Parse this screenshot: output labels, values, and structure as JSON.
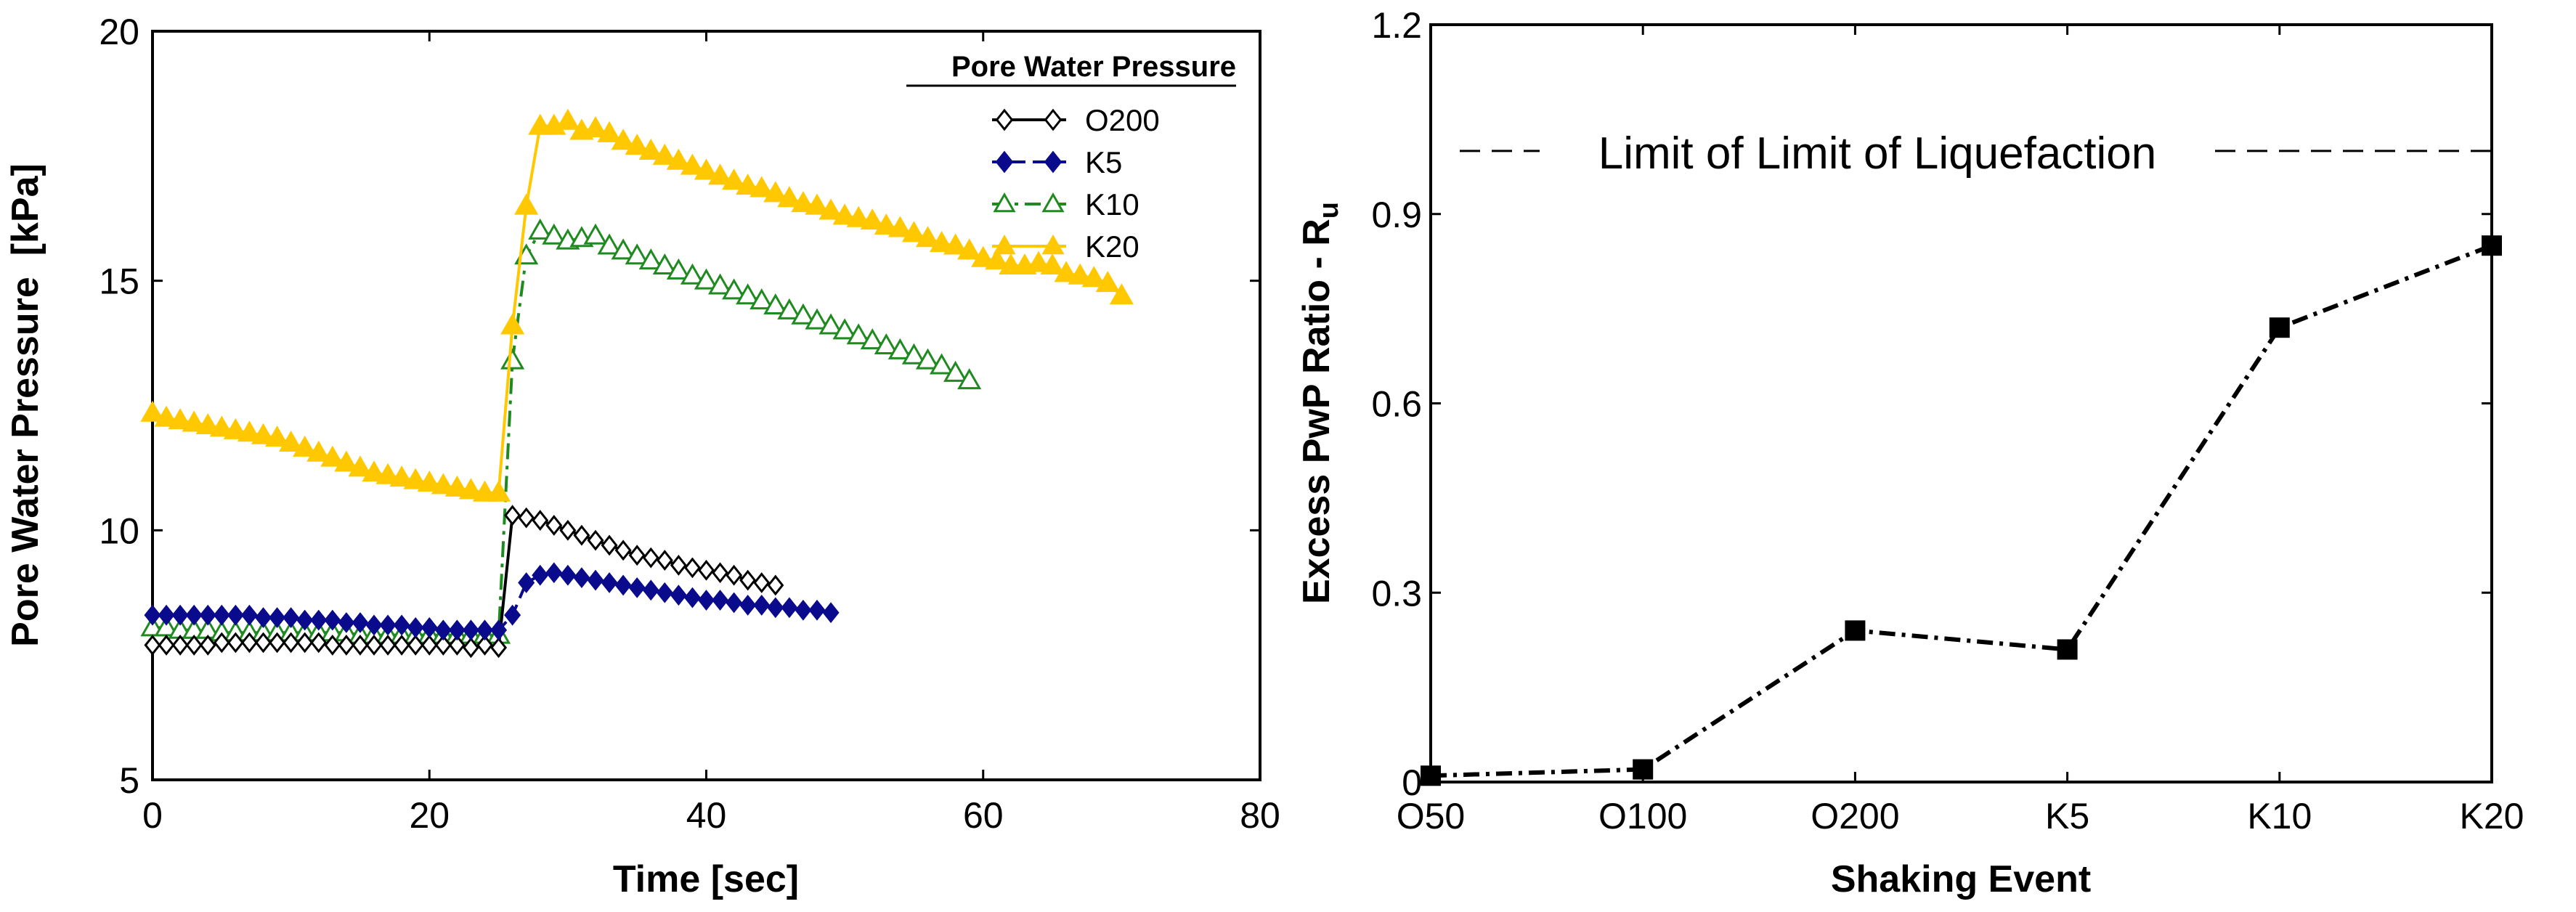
{
  "chart_data": [
    {
      "type": "line",
      "title": "",
      "xlabel": "Time [sec]",
      "ylabel": "Pore Water Pressure  [kPa]",
      "xlim": [
        0,
        80
      ],
      "ylim": [
        5,
        20
      ],
      "xticks": [
        "0",
        "20",
        "40",
        "60",
        "80"
      ],
      "yticks": [
        "5",
        "10",
        "15",
        "20"
      ],
      "legend_title": "Pore Water Pressure",
      "legend_position": "top-right",
      "x_start": 0,
      "x_step": 1,
      "series": [
        {
          "name": "O200",
          "color": "#000000",
          "marker": "open-diamond",
          "line": "solid",
          "values": [
            7.7,
            7.7,
            7.7,
            7.7,
            7.7,
            7.75,
            7.75,
            7.75,
            7.75,
            7.75,
            7.75,
            7.75,
            7.75,
            7.7,
            7.7,
            7.7,
            7.7,
            7.7,
            7.7,
            7.7,
            7.7,
            7.7,
            7.7,
            7.65,
            7.7,
            7.65,
            10.3,
            10.25,
            10.2,
            10.1,
            10.0,
            9.9,
            9.8,
            9.7,
            9.6,
            9.5,
            9.45,
            9.4,
            9.3,
            9.25,
            9.2,
            9.15,
            9.1,
            9.0,
            8.95,
            8.9
          ]
        },
        {
          "name": "K5",
          "color": "#0a0a8c",
          "marker": "filled-diamond",
          "line": "dashed",
          "values": [
            8.3,
            8.3,
            8.3,
            8.3,
            8.3,
            8.3,
            8.3,
            8.3,
            8.25,
            8.25,
            8.25,
            8.2,
            8.2,
            8.2,
            8.15,
            8.15,
            8.1,
            8.1,
            8.1,
            8.05,
            8.05,
            8.0,
            8.0,
            8.0,
            8.0,
            8.0,
            8.3,
            8.95,
            9.1,
            9.15,
            9.1,
            9.05,
            9.0,
            8.95,
            8.9,
            8.85,
            8.8,
            8.75,
            8.7,
            8.65,
            8.6,
            8.6,
            8.55,
            8.5,
            8.5,
            8.45,
            8.45,
            8.4,
            8.4,
            8.35
          ]
        },
        {
          "name": "K10",
          "color": "#1f8a1f",
          "marker": "open-triangle",
          "line": "dash-dot",
          "values": [
            8.05,
            8.05,
            8.0,
            8.0,
            8.0,
            7.95,
            7.95,
            7.95,
            7.95,
            7.95,
            7.95,
            7.95,
            7.95,
            7.95,
            7.95,
            7.9,
            7.9,
            7.9,
            7.9,
            7.9,
            7.9,
            7.9,
            7.9,
            7.9,
            7.9,
            7.9,
            13.4,
            15.5,
            16.0,
            15.9,
            15.8,
            15.85,
            15.9,
            15.7,
            15.6,
            15.5,
            15.4,
            15.3,
            15.2,
            15.1,
            15.0,
            14.9,
            14.8,
            14.7,
            14.6,
            14.5,
            14.4,
            14.3,
            14.2,
            14.1,
            14.0,
            13.9,
            13.8,
            13.7,
            13.6,
            13.5,
            13.4,
            13.3,
            13.15,
            13.0
          ]
        },
        {
          "name": "K20",
          "color": "#ffc800",
          "marker": "filled-triangle",
          "line": "solid",
          "values": [
            12.35,
            12.25,
            12.2,
            12.15,
            12.1,
            12.05,
            12.0,
            11.95,
            11.9,
            11.85,
            11.75,
            11.65,
            11.55,
            11.45,
            11.35,
            11.25,
            11.15,
            11.1,
            11.05,
            11.0,
            10.95,
            10.9,
            10.85,
            10.8,
            10.75,
            10.75,
            14.1,
            16.5,
            18.1,
            18.1,
            18.2,
            18.0,
            18.05,
            17.95,
            17.8,
            17.7,
            17.6,
            17.5,
            17.4,
            17.3,
            17.2,
            17.1,
            17.0,
            16.9,
            16.85,
            16.75,
            16.65,
            16.55,
            16.5,
            16.4,
            16.3,
            16.25,
            16.2,
            16.1,
            16.05,
            15.95,
            15.85,
            15.75,
            15.7,
            15.6,
            15.45,
            15.4,
            15.3,
            15.3,
            15.35,
            15.3,
            15.15,
            15.1,
            15.05,
            14.95,
            14.7
          ]
        }
      ]
    },
    {
      "type": "line",
      "title": "",
      "xlabel": "Shaking Event",
      "ylabel": "Excess PwP Ratio - R",
      "ylabel_subscript": "u",
      "ylim": [
        0,
        1.2
      ],
      "yticks": [
        "0",
        "0.3",
        "0.6",
        "0.9",
        "1.2"
      ],
      "categories": [
        "O50",
        "O100",
        "O200",
        "K5",
        "K10",
        "K20"
      ],
      "series": [
        {
          "name": "Ru",
          "color": "#000000",
          "marker": "filled-square",
          "line": "dash-dot",
          "values": [
            0.01,
            0.02,
            0.24,
            0.21,
            0.72,
            0.85
          ]
        }
      ],
      "reference_line": {
        "value": 1.0,
        "label": "Limit of Limit of Liquefaction",
        "line": "dashed"
      }
    }
  ]
}
